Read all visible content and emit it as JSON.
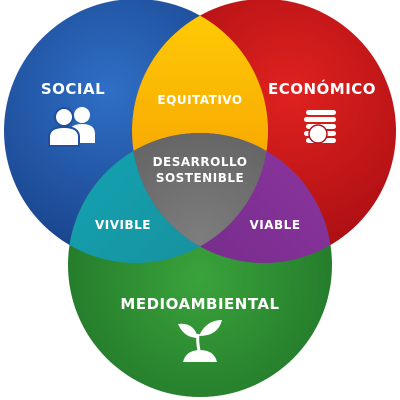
{
  "diagram": {
    "circles": {
      "social": {
        "label": "SOCIAL",
        "icon": "people-icon",
        "color": "#1e56a8"
      },
      "economico": {
        "label": "ECONÓMICO",
        "icon": "coins-icon",
        "color": "#c4121a"
      },
      "medioambiental": {
        "label": "MEDIOAMBIENTAL",
        "icon": "sprout-icon",
        "color": "#27852e"
      }
    },
    "intersections": {
      "equitativo": {
        "label": "EQUITATIVO",
        "color": "#f5a000"
      },
      "vivible": {
        "label": "VIVIBLE",
        "color": "#1a95a3"
      },
      "viable": {
        "label": "VIABLE",
        "color": "#7a2d8e"
      },
      "center": {
        "line1": "DESARROLLO",
        "line2": "SOSTENIBLE",
        "color": "#6a6a6a"
      }
    }
  }
}
